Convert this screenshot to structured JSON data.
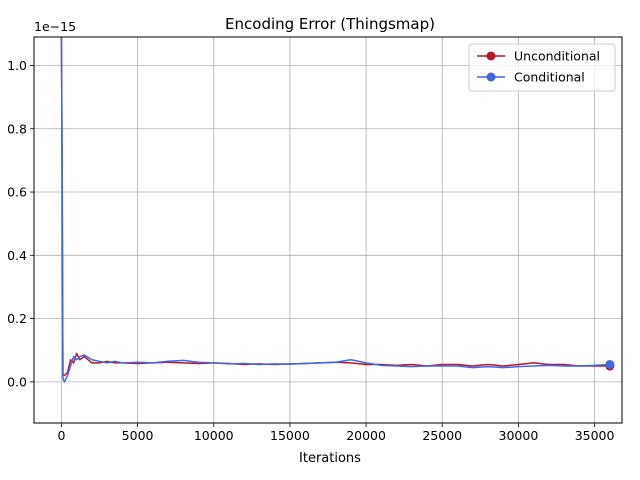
{
  "chart_data": {
    "type": "line",
    "title": "Encoding Error (Thingsmap)",
    "xlabel": "Iterations",
    "ylabel": "",
    "y_offset_label": "1e−15",
    "xlim": [
      -1800,
      36800
    ],
    "ylim": [
      -0.13,
      1.09
    ],
    "xticks": [
      0,
      5000,
      10000,
      15000,
      20000,
      25000,
      30000,
      35000
    ],
    "yticks": [
      0.0,
      0.2,
      0.4,
      0.6,
      0.8,
      1.0
    ],
    "ytick_labels": [
      "0.0",
      "0.2",
      "0.4",
      "0.6",
      "0.8",
      "1.0"
    ],
    "grid": true,
    "legend_position": "top-right",
    "series": [
      {
        "name": "Unconditional",
        "color": "#b2182b",
        "x": [
          0,
          50,
          100,
          200,
          400,
          600,
          800,
          1000,
          1200,
          1500,
          2000,
          2500,
          3000,
          3500,
          4000,
          5000,
          6000,
          7000,
          8000,
          9000,
          10000,
          11000,
          12000,
          13000,
          14000,
          15000,
          16000,
          17000,
          18000,
          19000,
          20000,
          21000,
          22000,
          23000,
          24000,
          25000,
          26000,
          27000,
          28000,
          29000,
          30000,
          31000,
          32000,
          33000,
          34000,
          35000,
          36000
        ],
        "y": [
          1.09,
          0.6,
          0.02,
          0.02,
          0.03,
          0.07,
          0.06,
          0.09,
          0.07,
          0.08,
          0.06,
          0.06,
          0.065,
          0.06,
          0.06,
          0.058,
          0.06,
          0.062,
          0.06,
          0.058,
          0.06,
          0.058,
          0.055,
          0.057,
          0.055,
          0.057,
          0.058,
          0.06,
          0.062,
          0.06,
          0.055,
          0.055,
          0.052,
          0.055,
          0.05,
          0.055,
          0.055,
          0.05,
          0.055,
          0.05,
          0.055,
          0.06,
          0.055,
          0.055,
          0.05,
          0.05,
          0.05
        ]
      },
      {
        "name": "Conditional",
        "color": "#4169e1",
        "x": [
          0,
          50,
          100,
          200,
          400,
          600,
          800,
          1000,
          1200,
          1500,
          2000,
          2500,
          3000,
          3500,
          4000,
          5000,
          6000,
          7000,
          8000,
          9000,
          10000,
          11000,
          12000,
          13000,
          14000,
          15000,
          16000,
          17000,
          18000,
          19000,
          20000,
          21000,
          22000,
          23000,
          24000,
          25000,
          26000,
          27000,
          28000,
          29000,
          30000,
          31000,
          32000,
          33000,
          34000,
          35000,
          36000
        ],
        "y": [
          1.09,
          0.7,
          0.01,
          0.0,
          0.02,
          0.05,
          0.08,
          0.07,
          0.08,
          0.085,
          0.07,
          0.065,
          0.06,
          0.065,
          0.06,
          0.062,
          0.06,
          0.065,
          0.068,
          0.062,
          0.06,
          0.057,
          0.058,
          0.055,
          0.057,
          0.056,
          0.058,
          0.06,
          0.062,
          0.07,
          0.06,
          0.052,
          0.05,
          0.048,
          0.05,
          0.05,
          0.05,
          0.045,
          0.048,
          0.045,
          0.048,
          0.05,
          0.052,
          0.05,
          0.05,
          0.052,
          0.055
        ]
      }
    ]
  }
}
